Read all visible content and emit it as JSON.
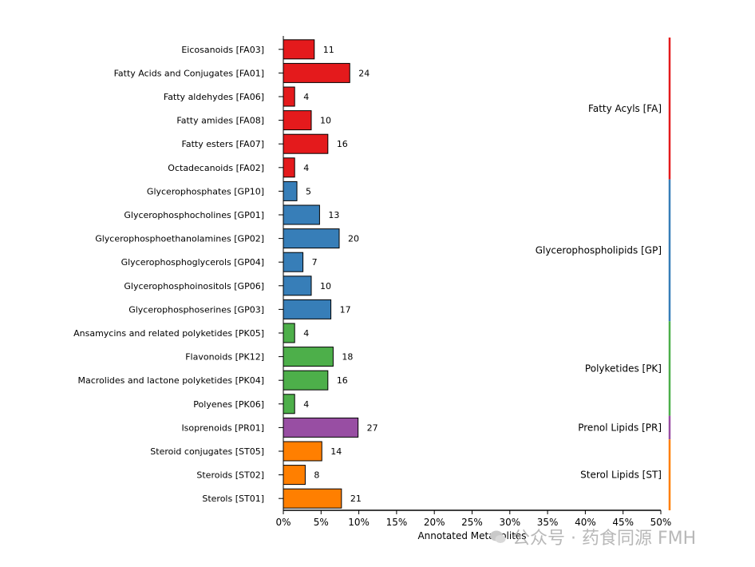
{
  "chart_data": {
    "type": "bar",
    "orientation": "horizontal",
    "xlabel": "Annotated Metabolites",
    "xlim": [
      0,
      50
    ],
    "xticks": [
      "0%",
      "5%",
      "10%",
      "15%",
      "20%",
      "25%",
      "30%",
      "35%",
      "40%",
      "45%",
      "50%"
    ],
    "categories": [
      {
        "label": "Eicosanoids [FA03]",
        "count": 11,
        "percent": 4.1,
        "group": "FA"
      },
      {
        "label": "Fatty Acids and Conjugates [FA01]",
        "count": 24,
        "percent": 8.8,
        "group": "FA"
      },
      {
        "label": "Fatty aldehydes [FA06]",
        "count": 4,
        "percent": 1.5,
        "group": "FA"
      },
      {
        "label": "Fatty amides [FA08]",
        "count": 10,
        "percent": 3.7,
        "group": "FA"
      },
      {
        "label": "Fatty esters [FA07]",
        "count": 16,
        "percent": 5.9,
        "group": "FA"
      },
      {
        "label": "Octadecanoids [FA02]",
        "count": 4,
        "percent": 1.5,
        "group": "FA"
      },
      {
        "label": "Glycerophosphates [GP10]",
        "count": 5,
        "percent": 1.8,
        "group": "GP"
      },
      {
        "label": "Glycerophosphocholines [GP01]",
        "count": 13,
        "percent": 4.8,
        "group": "GP"
      },
      {
        "label": "Glycerophosphoethanolamines [GP02]",
        "count": 20,
        "percent": 7.4,
        "group": "GP"
      },
      {
        "label": "Glycerophosphoglycerols [GP04]",
        "count": 7,
        "percent": 2.6,
        "group": "GP"
      },
      {
        "label": "Glycerophosphoinositols [GP06]",
        "count": 10,
        "percent": 3.7,
        "group": "GP"
      },
      {
        "label": "Glycerophosphoserines [GP03]",
        "count": 17,
        "percent": 6.3,
        "group": "GP"
      },
      {
        "label": "Ansamycins and related polyketides [PK05]",
        "count": 4,
        "percent": 1.5,
        "group": "PK"
      },
      {
        "label": "Flavonoids [PK12]",
        "count": 18,
        "percent": 6.6,
        "group": "PK"
      },
      {
        "label": "Macrolides and lactone polyketides [PK04]",
        "count": 16,
        "percent": 5.9,
        "group": "PK"
      },
      {
        "label": "Polyenes [PK06]",
        "count": 4,
        "percent": 1.5,
        "group": "PK"
      },
      {
        "label": "Isoprenoids [PR01]",
        "count": 27,
        "percent": 9.9,
        "group": "PR"
      },
      {
        "label": "Steroid conjugates [ST05]",
        "count": 14,
        "percent": 5.1,
        "group": "ST"
      },
      {
        "label": "Steroids [ST02]",
        "count": 8,
        "percent": 2.9,
        "group": "ST"
      },
      {
        "label": "Sterols [ST01]",
        "count": 21,
        "percent": 7.7,
        "group": "ST"
      }
    ],
    "groups": [
      {
        "key": "FA",
        "label": "Fatty Acyls [FA]",
        "color": "#e41a1c"
      },
      {
        "key": "GP",
        "label": "Glycerophospholipids [GP]",
        "color": "#377eb8"
      },
      {
        "key": "PK",
        "label": "Polyketides [PK]",
        "color": "#4daf4a"
      },
      {
        "key": "PR",
        "label": "Prenol Lipids [PR]",
        "color": "#984ea3"
      },
      {
        "key": "ST",
        "label": "Sterol Lipids [ST]",
        "color": "#ff7f00"
      }
    ]
  },
  "watermark": {
    "text": "公众号 · 药食同源 FMH",
    "icon": "wechat-icon"
  }
}
